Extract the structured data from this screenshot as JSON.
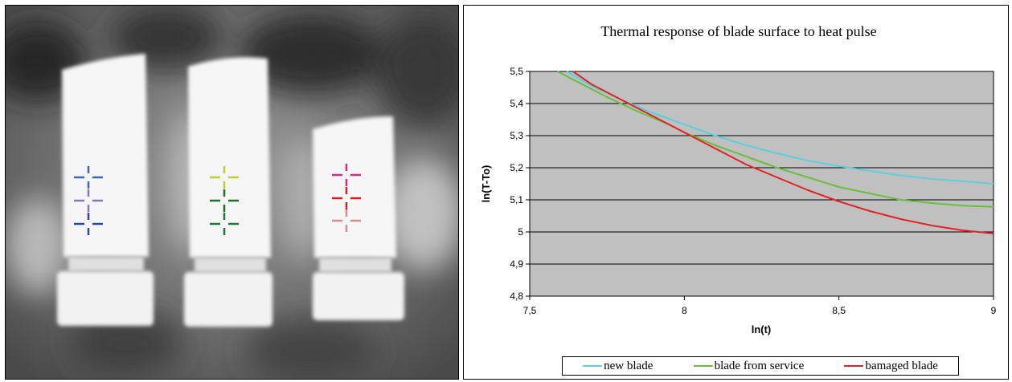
{
  "thermogram": {
    "blade_count": 3,
    "marker_colors": [
      [
        "#3a66b8",
        "#8a74c4",
        "#2a4ba0"
      ],
      [
        "#c3cc2a",
        "#1f6e2c",
        "#1f7a3a"
      ],
      [
        "#d8288a",
        "#cc2222",
        "#e08b8b"
      ]
    ]
  },
  "chart_data": {
    "type": "line",
    "title": "Thermal response of blade surface to heat pulse",
    "xlabel": "ln(t)",
    "ylabel": "ln(T-To)",
    "xlim": [
      7.5,
      9
    ],
    "ylim": [
      4.8,
      5.5
    ],
    "x_ticks": [
      "7,5",
      "8",
      "8,5",
      "9"
    ],
    "y_ticks": [
      "4,8",
      "4,9",
      "5",
      "5,1",
      "5,2",
      "5,3",
      "5,4",
      "5,5"
    ],
    "grid": true,
    "legend_position": "bottom",
    "plot_background": "#c0c0c0",
    "series": [
      {
        "name": "new blade",
        "color": "#5bcfe0",
        "x": [
          7.62,
          7.7,
          7.8,
          7.9,
          8.0,
          8.1,
          8.2,
          8.3,
          8.4,
          8.5,
          8.6,
          8.7,
          8.8,
          8.9,
          9.0
        ],
        "y": [
          5.5,
          5.455,
          5.41,
          5.37,
          5.335,
          5.3,
          5.27,
          5.245,
          5.222,
          5.205,
          5.19,
          5.176,
          5.165,
          5.158,
          5.15
        ]
      },
      {
        "name": "blade from service",
        "color": "#6abf3c",
        "x": [
          7.59,
          7.65,
          7.75,
          7.85,
          7.95,
          8.0,
          8.1,
          8.2,
          8.3,
          8.4,
          8.5,
          8.6,
          8.7,
          8.8,
          8.9,
          9.0
        ],
        "y": [
          5.5,
          5.47,
          5.42,
          5.375,
          5.335,
          5.31,
          5.27,
          5.235,
          5.2,
          5.17,
          5.14,
          5.12,
          5.1,
          5.09,
          5.082,
          5.078
        ]
      },
      {
        "name": "bamaged blade",
        "color": "#e32222",
        "x": [
          7.64,
          7.7,
          7.8,
          7.9,
          8.0,
          8.1,
          8.2,
          8.3,
          8.4,
          8.5,
          8.6,
          8.7,
          8.8,
          8.9,
          9.0
        ],
        "y": [
          5.5,
          5.46,
          5.41,
          5.36,
          5.31,
          5.26,
          5.21,
          5.17,
          5.13,
          5.095,
          5.065,
          5.04,
          5.02,
          5.005,
          4.995
        ]
      }
    ]
  }
}
